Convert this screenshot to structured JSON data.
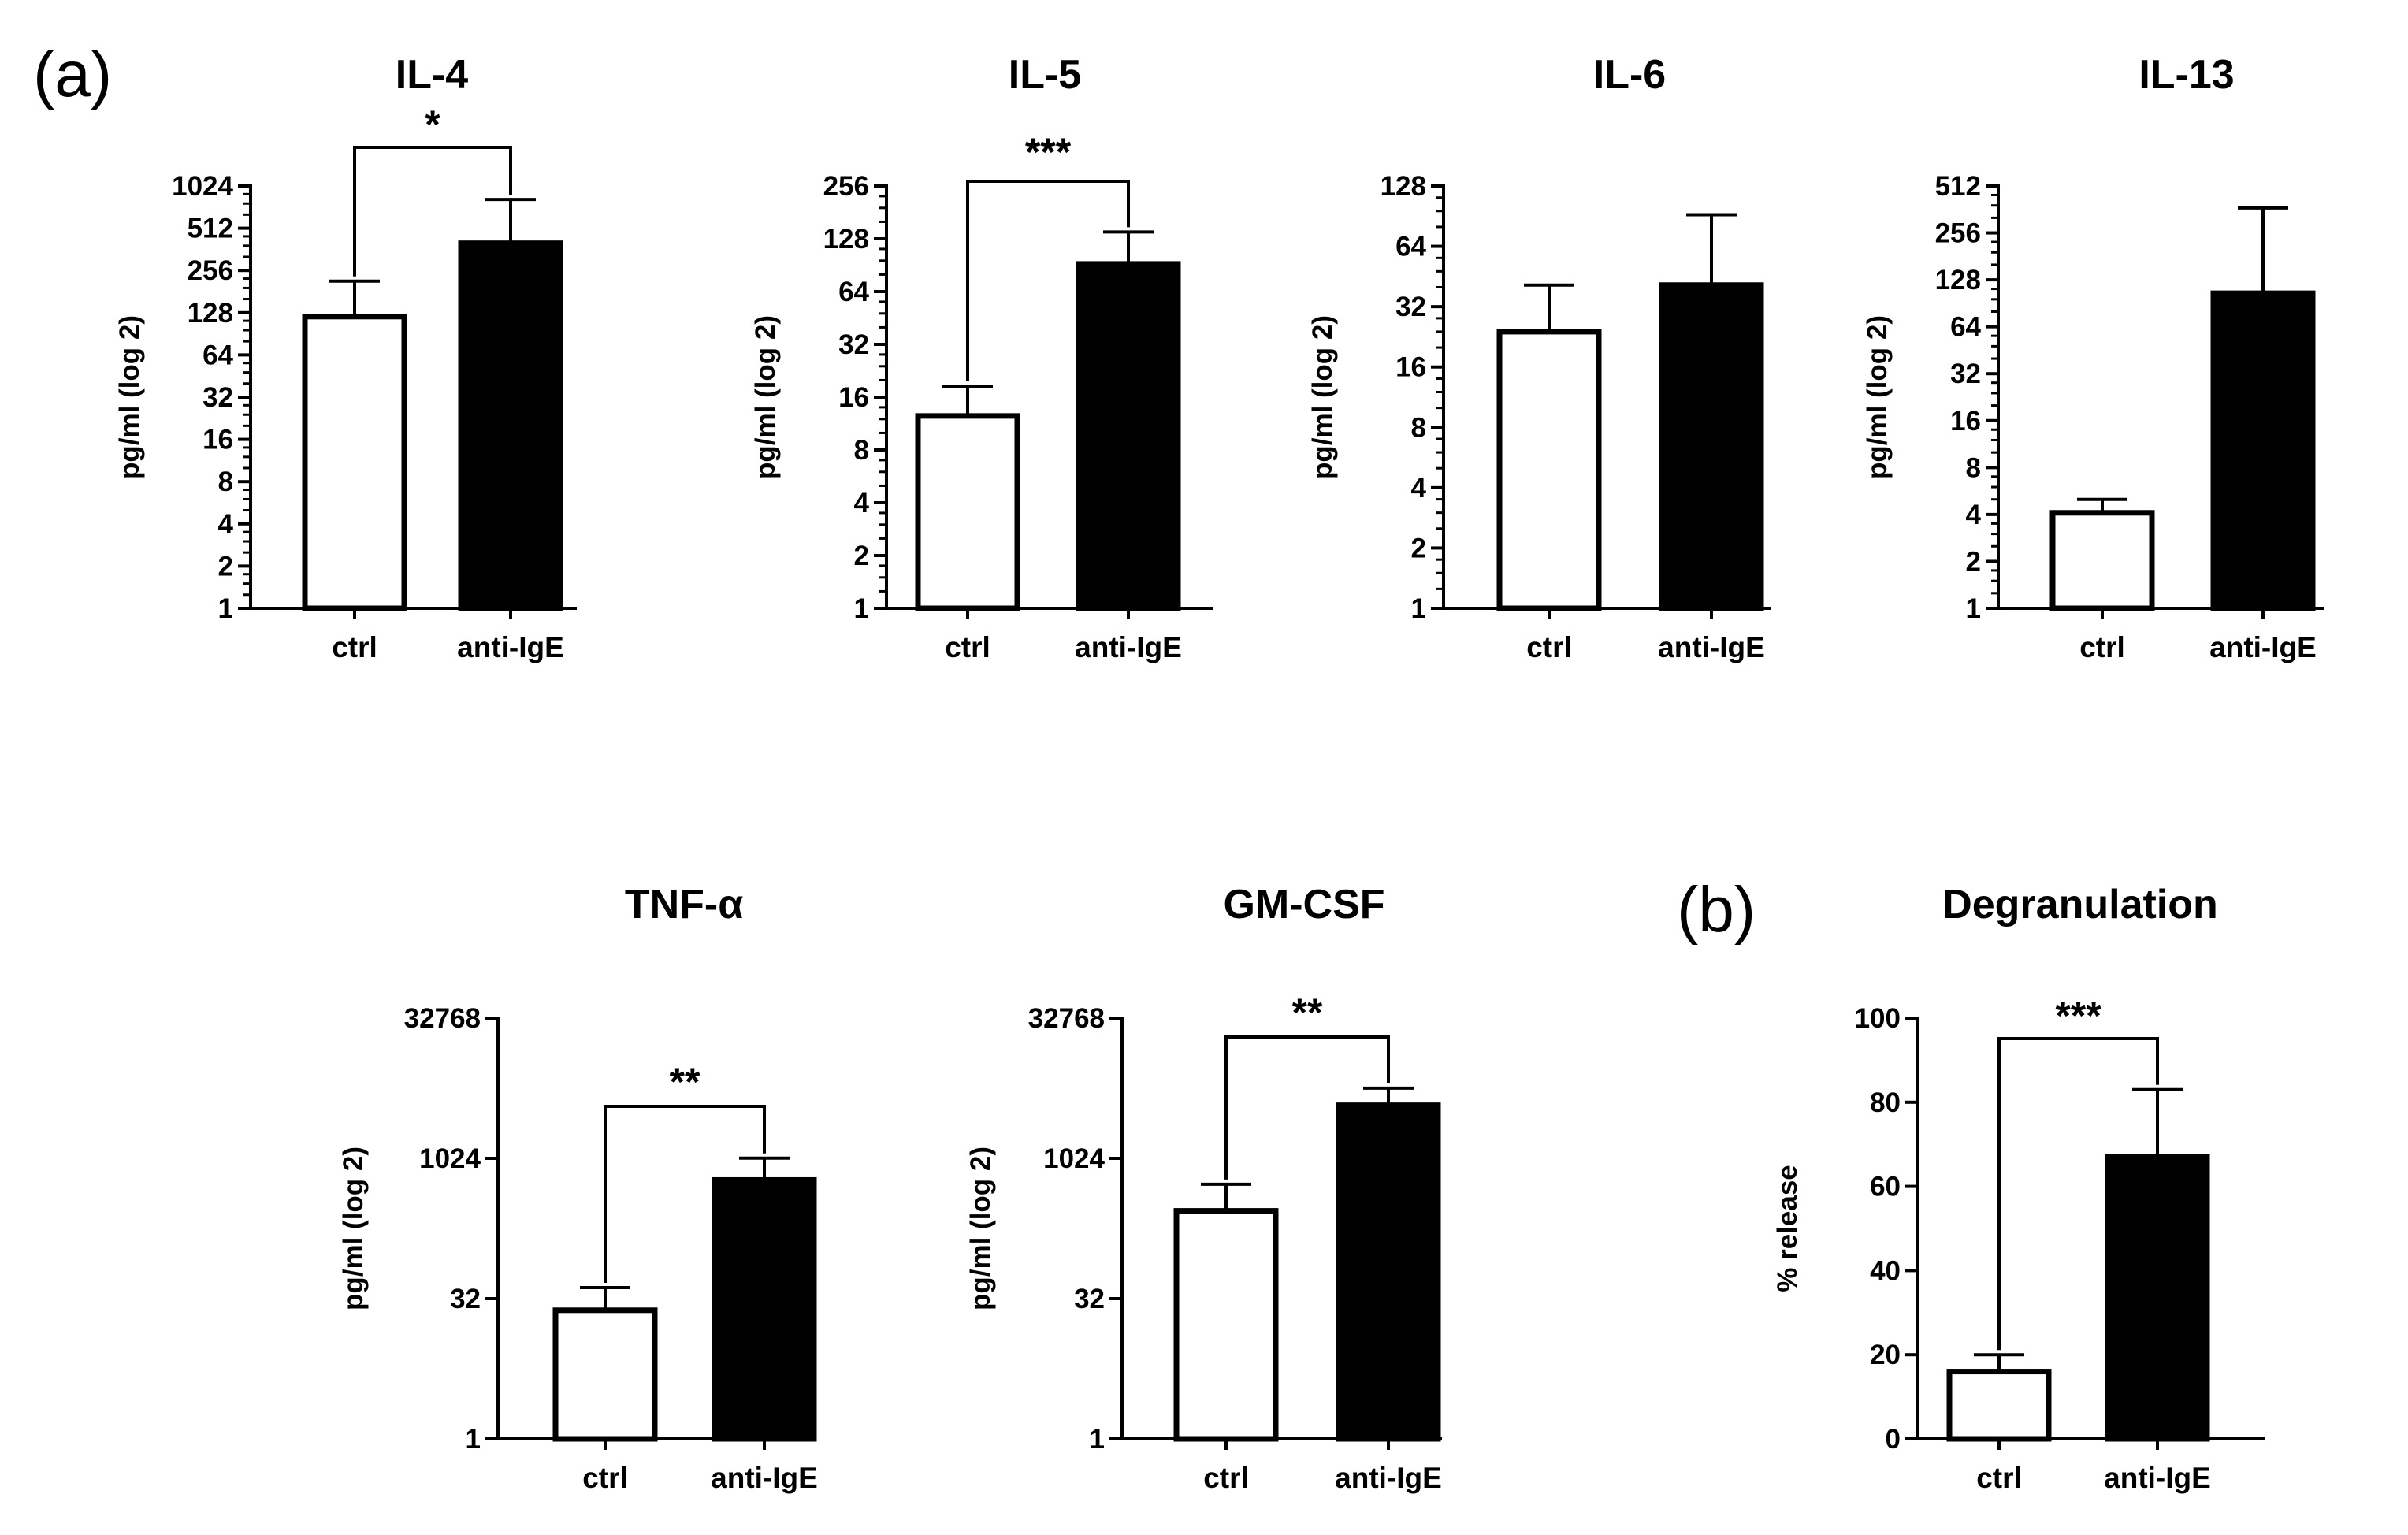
{
  "panel_labels": [
    "(a)",
    "(b)"
  ],
  "colors": {
    "ctrl_fill": "#ffffff",
    "anti_fill": "#000000",
    "stroke": "#000000"
  },
  "chart_data": [
    {
      "type": "bar",
      "title": "IL-4",
      "ylabel": "pg/ml (log 2)",
      "yscale": "log2",
      "ylim": [
        1,
        1024
      ],
      "yticks": [
        1,
        2,
        4,
        8,
        16,
        32,
        64,
        128,
        256,
        512,
        1024
      ],
      "minor_ticks": true,
      "categories": [
        "ctrl",
        "anti-IgE"
      ],
      "values": [
        120,
        400
      ],
      "errors_upper": [
        215,
        820
      ],
      "significance": "*"
    },
    {
      "type": "bar",
      "title": "IL-5",
      "ylabel": "pg/ml (log 2)",
      "yscale": "log2",
      "ylim": [
        1,
        256
      ],
      "yticks": [
        1,
        2,
        4,
        8,
        16,
        32,
        64,
        128,
        256
      ],
      "minor_ticks": true,
      "categories": [
        "ctrl",
        "anti-IgE"
      ],
      "values": [
        12.5,
        92
      ],
      "errors_upper": [
        18.5,
        140
      ],
      "significance": "***"
    },
    {
      "type": "bar",
      "title": "IL-6",
      "ylabel": "pg/ml (log 2)",
      "yscale": "log2",
      "ylim": [
        1,
        128
      ],
      "yticks": [
        1,
        2,
        4,
        8,
        16,
        32,
        64,
        128
      ],
      "minor_ticks": true,
      "categories": [
        "ctrl",
        "anti-IgE"
      ],
      "values": [
        24,
        41
      ],
      "errors_upper": [
        41,
        92
      ],
      "significance": ""
    },
    {
      "type": "bar",
      "title": "IL-13",
      "ylabel": "pg/ml (log 2)",
      "yscale": "log2",
      "ylim": [
        1,
        512
      ],
      "yticks": [
        1,
        2,
        4,
        8,
        16,
        32,
        64,
        128,
        256,
        512
      ],
      "minor_ticks": true,
      "categories": [
        "ctrl",
        "anti-IgE"
      ],
      "values": [
        4.1,
        105
      ],
      "errors_upper": [
        5.0,
        370
      ],
      "significance": ""
    },
    {
      "type": "bar",
      "title": "TNF-α",
      "ylabel": "pg/ml (log 2)",
      "yscale": "log2",
      "ylim": [
        1,
        32768
      ],
      "yticks": [
        1,
        32,
        1024,
        32768
      ],
      "minor_ticks": false,
      "categories": [
        "ctrl",
        "anti-IgE"
      ],
      "values": [
        24,
        600
      ],
      "errors_upper": [
        42,
        1030
      ],
      "significance": "**"
    },
    {
      "type": "bar",
      "title": "GM-CSF",
      "ylabel": "pg/ml (log 2)",
      "yscale": "log2",
      "ylim": [
        1,
        32768
      ],
      "yticks": [
        1,
        32,
        1024,
        32768
      ],
      "minor_ticks": false,
      "categories": [
        "ctrl",
        "anti-IgE"
      ],
      "values": [
        280,
        3800
      ],
      "errors_upper": [
        540,
        5800
      ],
      "significance": "**"
    },
    {
      "type": "bar",
      "title": "Degranulation",
      "ylabel": "% release",
      "yscale": "linear",
      "ylim": [
        0,
        100
      ],
      "yticks": [
        0,
        20,
        40,
        60,
        80,
        100
      ],
      "minor_ticks": false,
      "categories": [
        "ctrl",
        "anti-IgE"
      ],
      "values": [
        16,
        67
      ],
      "errors_upper": [
        20,
        83
      ],
      "significance": "***"
    }
  ]
}
